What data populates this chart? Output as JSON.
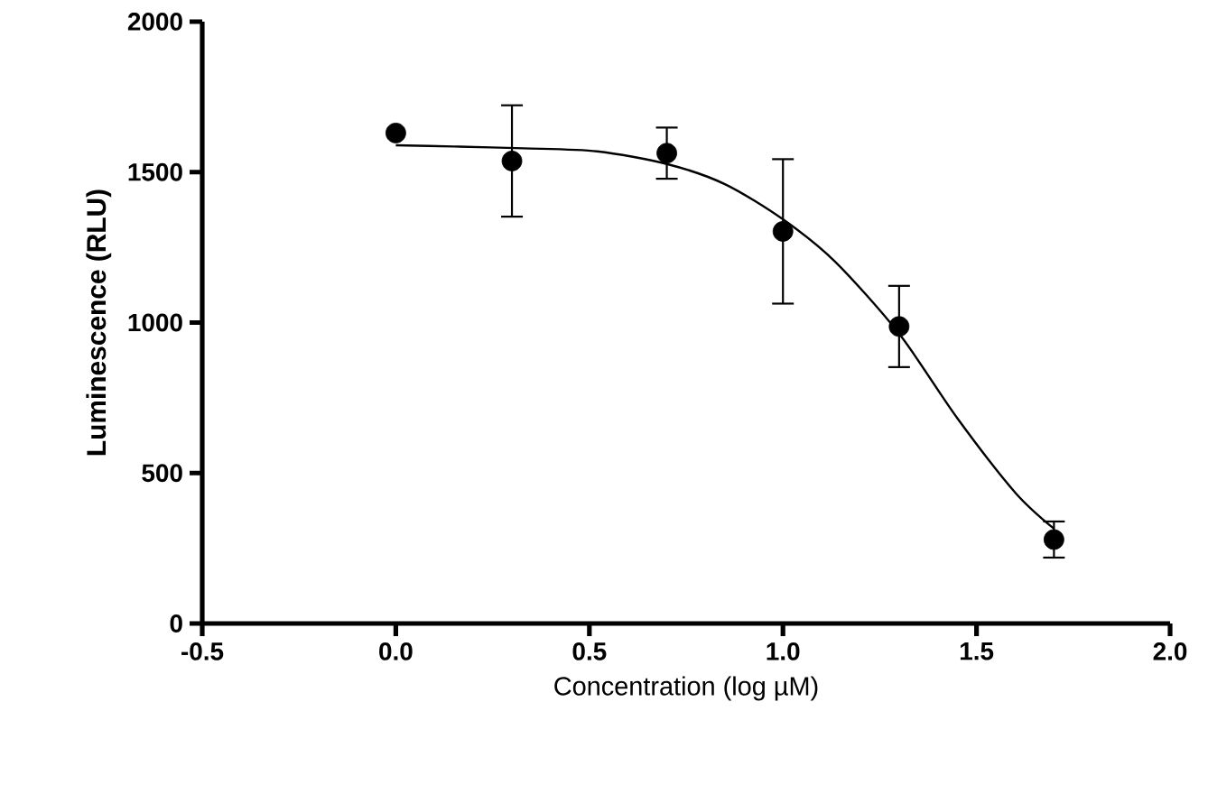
{
  "chart_data": {
    "type": "scatter",
    "xlabel": "Concentration (log µM)",
    "ylabel": "Luminescence (RLU)",
    "xlim": [
      -0.5,
      2.0
    ],
    "xticks": [
      {
        "value": -0.5,
        "label": "-0.5"
      },
      {
        "value": 0,
        "label": "0.0"
      },
      {
        "value": 0.5,
        "label": "0.5"
      },
      {
        "value": 1.0,
        "label": "1.0"
      },
      {
        "value": 1.5,
        "label": "1.5"
      },
      {
        "value": 2.0,
        "label": "2.0"
      }
    ],
    "ylim": [
      0,
      2000
    ],
    "yticks": [
      0,
      500,
      1000,
      1500,
      2000
    ],
    "grid": false,
    "series": [
      {
        "marker": "circle",
        "color": "#000000",
        "x": [
          0,
          0.3,
          0.7,
          1.0,
          1.3,
          1.7
        ],
        "values": [
          1630,
          1537,
          1563,
          1303,
          987,
          279
        ],
        "errors": [
          null,
          185,
          85,
          240,
          135,
          60
        ]
      },
      {
        "type": "line",
        "marker": "none",
        "line_style": "solid",
        "color": "#000000",
        "x": [
          0,
          0.15,
          0.33,
          0.52,
          0.7,
          0.85,
          1.0,
          1.135,
          1.3,
          1.45,
          1.6,
          1.7
        ],
        "values": [
          1589,
          1585,
          1579,
          1569,
          1527,
          1460,
          1343,
          1202,
          963,
          683,
          435,
          315
        ]
      }
    ]
  }
}
